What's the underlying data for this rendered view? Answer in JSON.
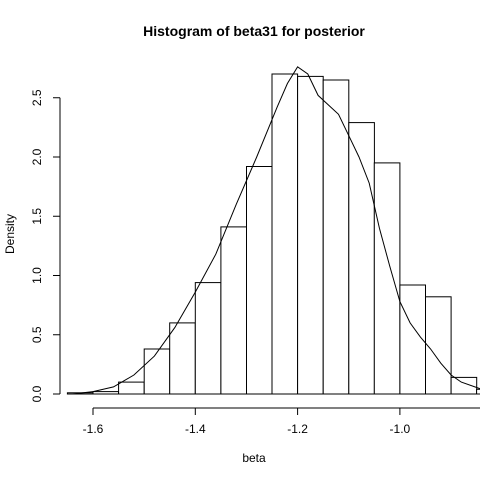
{
  "chart_data": {
    "type": "bar",
    "subtype": "histogram-with-density",
    "title": "Histogram of beta31 for posterior",
    "xlabel": "beta",
    "ylabel": "Density",
    "xlim": [
      -1.65,
      -0.7
    ],
    "ylim": [
      0,
      2.8
    ],
    "x_ticks": [
      -1.6,
      -1.4,
      -1.2,
      -1.0,
      -0.8
    ],
    "x_tick_labels": [
      "-1.6",
      "-1.4",
      "-1.2",
      "-1.0",
      "-0.8"
    ],
    "y_ticks": [
      0.0,
      0.5,
      1.0,
      1.5,
      2.0,
      2.5
    ],
    "y_tick_labels": [
      "0.0",
      "0.5",
      "1.0",
      "1.5",
      "2.0",
      "2.5"
    ],
    "grid": false,
    "bins": [
      {
        "x0": -1.65,
        "x1": -1.6,
        "value": 0.01
      },
      {
        "x0": -1.6,
        "x1": -1.55,
        "value": 0.02
      },
      {
        "x0": -1.55,
        "x1": -1.5,
        "value": 0.1
      },
      {
        "x0": -1.5,
        "x1": -1.45,
        "value": 0.38
      },
      {
        "x0": -1.45,
        "x1": -1.4,
        "value": 0.6
      },
      {
        "x0": -1.4,
        "x1": -1.35,
        "value": 0.94
      },
      {
        "x0": -1.35,
        "x1": -1.3,
        "value": 1.41
      },
      {
        "x0": -1.3,
        "x1": -1.25,
        "value": 1.92
      },
      {
        "x0": -1.25,
        "x1": -1.2,
        "value": 2.7
      },
      {
        "x0": -1.2,
        "x1": -1.15,
        "value": 2.68
      },
      {
        "x0": -1.15,
        "x1": -1.1,
        "value": 2.65
      },
      {
        "x0": -1.1,
        "x1": -1.05,
        "value": 2.29
      },
      {
        "x0": -1.05,
        "x1": -1.0,
        "value": 1.95
      },
      {
        "x0": -1.0,
        "x1": -0.95,
        "value": 0.92
      },
      {
        "x0": -0.95,
        "x1": -0.9,
        "value": 0.82
      },
      {
        "x0": -0.9,
        "x1": -0.85,
        "value": 0.14
      },
      {
        "x0": -0.85,
        "x1": -0.8,
        "value": 0.04
      },
      {
        "x0": -0.8,
        "x1": -0.75,
        "value": 0.02
      }
    ],
    "density_line": {
      "x": [
        -1.64,
        -1.6,
        -1.56,
        -1.52,
        -1.48,
        -1.44,
        -1.4,
        -1.36,
        -1.32,
        -1.28,
        -1.24,
        -1.22,
        -1.2,
        -1.18,
        -1.16,
        -1.14,
        -1.12,
        -1.1,
        -1.08,
        -1.06,
        -1.04,
        -1.02,
        -1.0,
        -0.98,
        -0.96,
        -0.94,
        -0.92,
        -0.9,
        -0.88,
        -0.84,
        -0.8,
        -0.76,
        -0.72
      ],
      "y": [
        0.0,
        0.02,
        0.06,
        0.16,
        0.32,
        0.56,
        0.86,
        1.18,
        1.6,
        2.0,
        2.42,
        2.62,
        2.76,
        2.7,
        2.52,
        2.44,
        2.36,
        2.18,
        2.0,
        1.78,
        1.4,
        1.08,
        0.78,
        0.6,
        0.48,
        0.38,
        0.26,
        0.16,
        0.1,
        0.04,
        0.02,
        0.01,
        0.0
      ]
    }
  }
}
